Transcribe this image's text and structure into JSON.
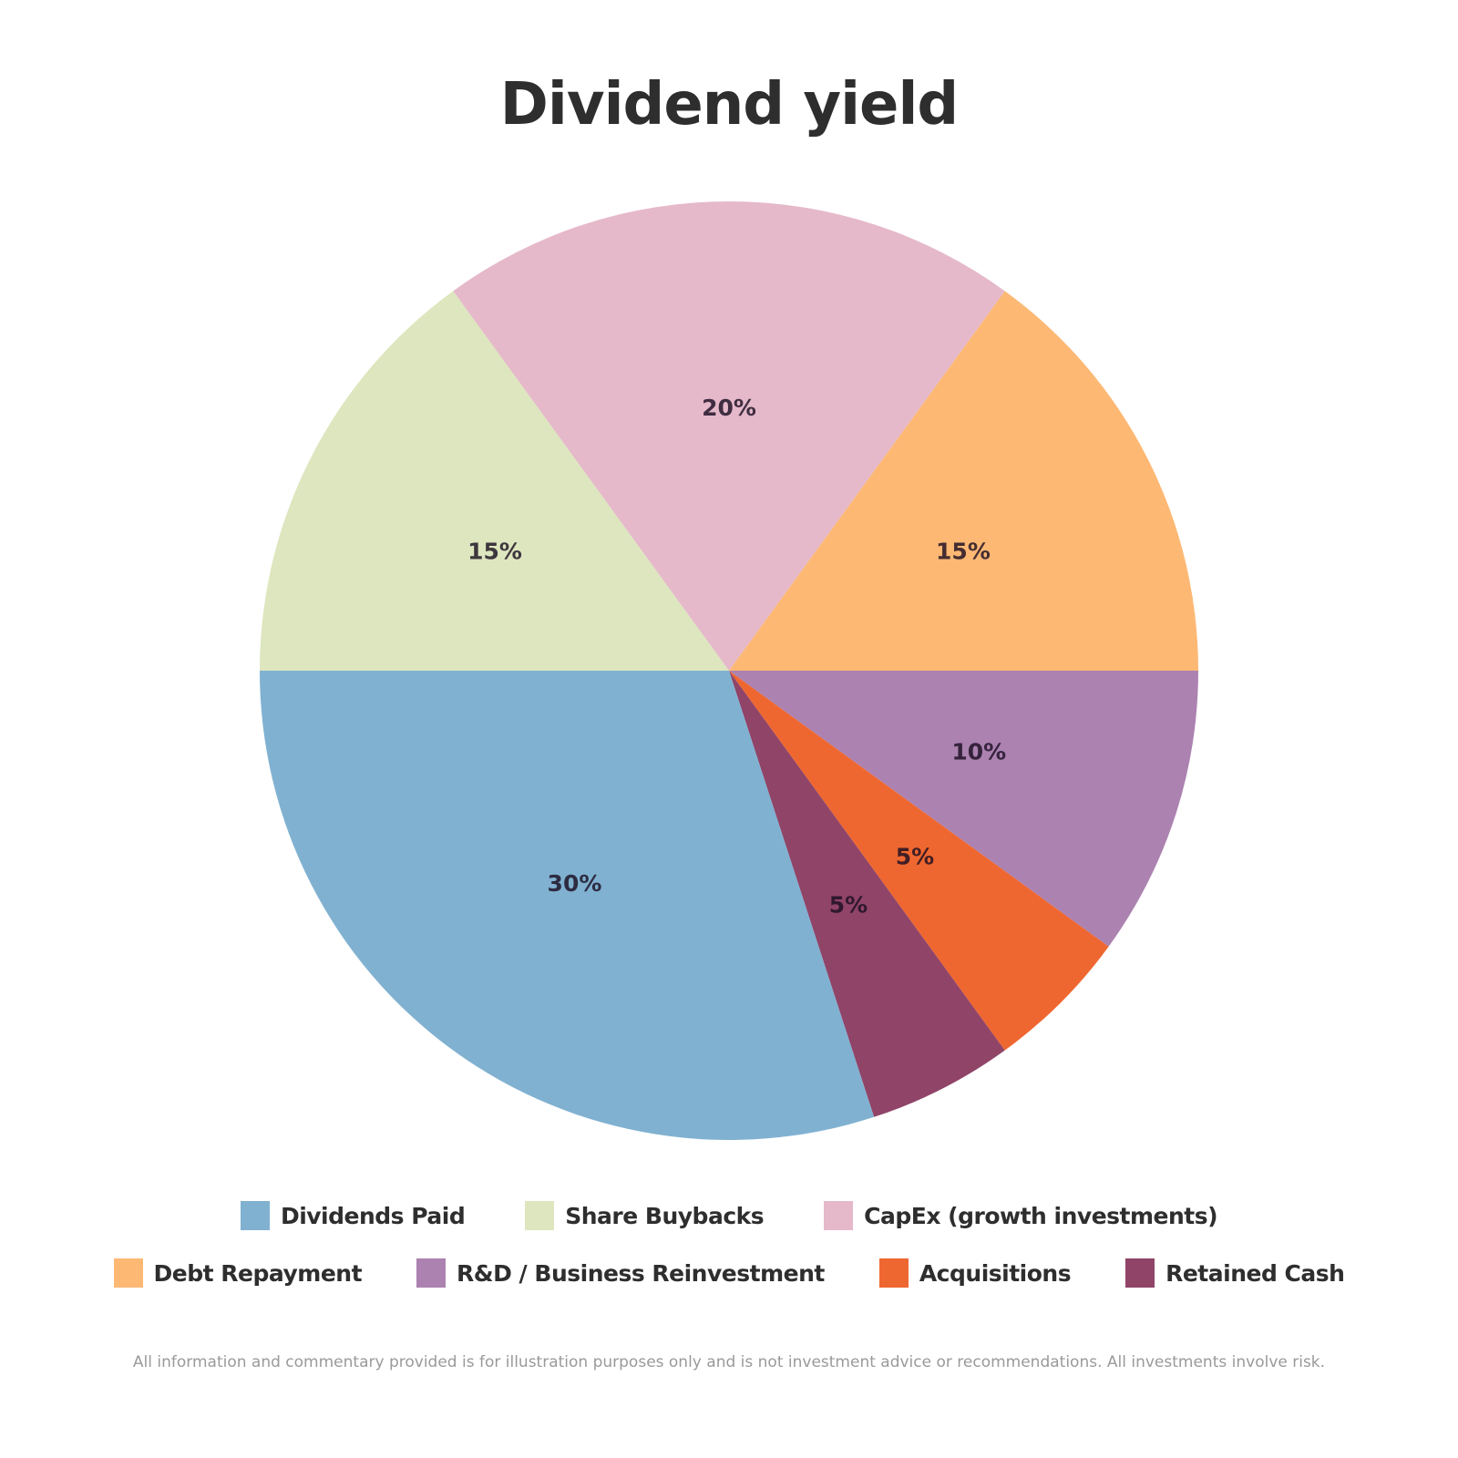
{
  "title": "Dividend yield",
  "disclaimer": "All information and commentary provided is for illustration purposes only and is not investment advice or recommendations. All investments involve risk.",
  "chart_data": {
    "type": "pie",
    "title": "Dividend yield",
    "start_angle_deg": 0,
    "direction": "clockwise",
    "legend_position": "bottom",
    "slices": [
      {
        "name": "R&D / Business Reinvestment",
        "value": 10,
        "label": "10%",
        "color": "#ac82b1"
      },
      {
        "name": "Acquisitions",
        "value": 5,
        "label": "5%",
        "color": "#ef6730"
      },
      {
        "name": "Retained Cash",
        "value": 5,
        "label": "5%",
        "color": "#904468"
      },
      {
        "name": "Dividends Paid",
        "value": 30,
        "label": "30%",
        "color": "#80b1d1"
      },
      {
        "name": "Share Buybacks",
        "value": 15,
        "label": "15%",
        "color": "#dde6be"
      },
      {
        "name": "CapEx (growth investments)",
        "value": 20,
        "label": "20%",
        "color": "#e5b9ca"
      },
      {
        "name": "Debt Repayment",
        "value": 15,
        "label": "15%",
        "color": "#fdb874"
      }
    ],
    "categories": [
      "Dividends Paid",
      "Share Buybacks",
      "CapEx (growth investments)",
      "Debt Repayment",
      "R&D / Business Reinvestment",
      "Acquisitions",
      "Retained Cash"
    ],
    "values": [
      30,
      15,
      20,
      15,
      10,
      5,
      5
    ]
  },
  "legend": {
    "row1": [
      {
        "label": "Dividends Paid",
        "color": "#80b1d1"
      },
      {
        "label": "Share Buybacks",
        "color": "#dde6be"
      },
      {
        "label": "CapEx (growth investments)",
        "color": "#e5b9ca"
      }
    ],
    "row2": [
      {
        "label": "Debt Repayment",
        "color": "#fdb874"
      },
      {
        "label": "R&D / Business Reinvestment",
        "color": "#ac82b1"
      },
      {
        "label": "Acquisitions",
        "color": "#ef6730"
      },
      {
        "label": "Retained Cash",
        "color": "#904468"
      }
    ]
  }
}
